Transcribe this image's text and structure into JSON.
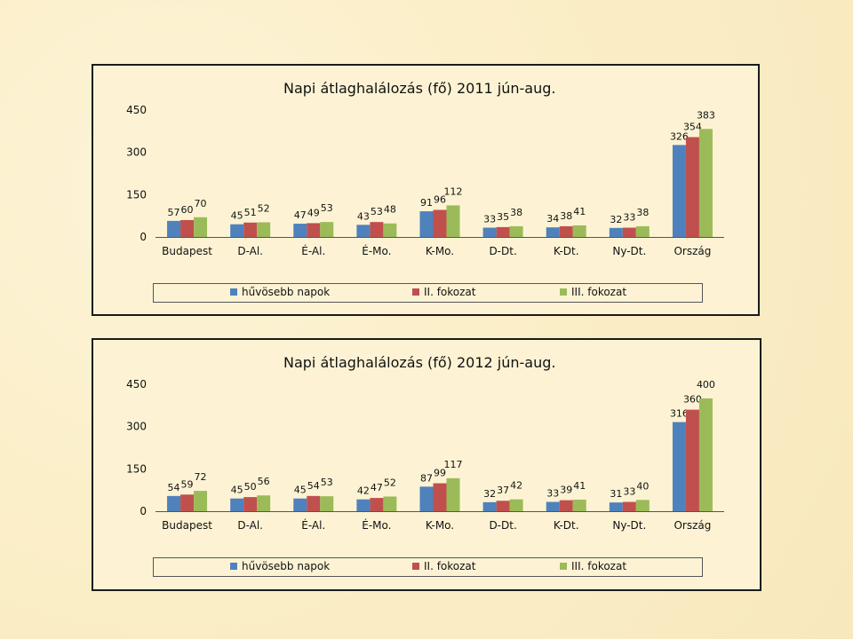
{
  "colors": {
    "series1": "#4f81bd",
    "series2": "#c0504d",
    "series3": "#9bbb59"
  },
  "chart_data": [
    {
      "type": "bar",
      "title": "Napi átlaghalálozás (fő) 2011 jún-aug.",
      "categories": [
        "Budapest",
        "D-Al.",
        "É-Al.",
        "É-Mo.",
        "K-Mo.",
        "D-Dt.",
        "K-Dt.",
        "Ny-Dt.",
        "Ország"
      ],
      "series": [
        {
          "name": "hűvösebb napok",
          "values": [
            57,
            45,
            47,
            43,
            91,
            33,
            34,
            32,
            326
          ]
        },
        {
          "name": "II. fokozat",
          "values": [
            60,
            51,
            49,
            53,
            96,
            35,
            38,
            33,
            354
          ]
        },
        {
          "name": "III. fokozat",
          "values": [
            70,
            52,
            53,
            48,
            112,
            38,
            41,
            38,
            383
          ]
        }
      ],
      "yticks": [
        "0",
        "150",
        "300",
        "450"
      ],
      "ylim": [
        0,
        450
      ],
      "legend_position": "bottom",
      "grid": false
    },
    {
      "type": "bar",
      "title": "Napi átlaghalálozás (fő) 2012 jún-aug.",
      "categories": [
        "Budapest",
        "D-Al.",
        "É-Al.",
        "É-Mo.",
        "K-Mo.",
        "D-Dt.",
        "K-Dt.",
        "Ny-Dt.",
        "Ország"
      ],
      "series": [
        {
          "name": "hűvösebb napok",
          "values": [
            54,
            45,
            45,
            42,
            87,
            32,
            33,
            31,
            316
          ]
        },
        {
          "name": "II. fokozat",
          "values": [
            59,
            50,
            54,
            47,
            99,
            37,
            39,
            33,
            360
          ]
        },
        {
          "name": "III. fokozat",
          "values": [
            72,
            56,
            53,
            52,
            117,
            42,
            41,
            40,
            400
          ]
        }
      ],
      "yticks": [
        "0",
        "150",
        "300",
        "450"
      ],
      "ylim": [
        0,
        450
      ],
      "legend_position": "bottom",
      "grid": false
    }
  ]
}
